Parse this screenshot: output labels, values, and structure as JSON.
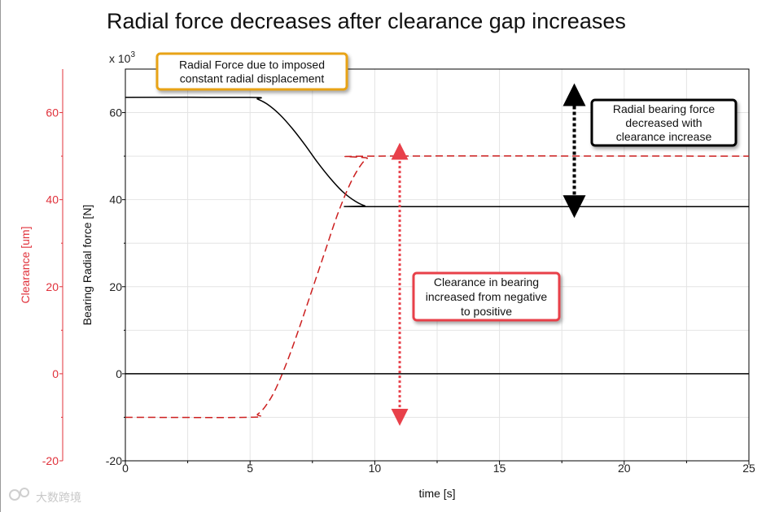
{
  "chart_data": {
    "type": "line",
    "title": "Radial force decreases after clearance gap increases",
    "xlabel": "time [s]",
    "ylabel": "Bearing Radial force [N]",
    "y2label": "Clearance [um]",
    "y_multiplier_base": "x 10",
    "y_multiplier_exp": "3",
    "xlim": [
      0,
      25
    ],
    "ylim": [
      -20,
      70
    ],
    "y2lim": [
      -20,
      70
    ],
    "x_ticks": [
      0,
      5,
      10,
      15,
      20,
      25
    ],
    "y_ticks": [
      -20,
      0,
      20,
      40,
      60
    ],
    "y2_ticks": [
      -20,
      0,
      20,
      40,
      60
    ],
    "grid": true,
    "series": [
      {
        "name": "Bearing Radial force",
        "axis": "left",
        "color": "#000000",
        "style": "solid",
        "x": [
          0,
          5.0,
          5.3,
          5.7,
          6.2,
          6.7,
          7.2,
          7.7,
          8.2,
          8.7,
          9.2,
          9.6,
          10.0,
          25
        ],
        "y": [
          63.5,
          63.5,
          63.1,
          61.9,
          59.5,
          56.3,
          52.6,
          48.6,
          45.0,
          41.9,
          39.7,
          38.6,
          38.4,
          38.4
        ]
      },
      {
        "name": "Clearance",
        "axis": "right",
        "color": "#cc1f1f",
        "style": "dashed",
        "x": [
          0,
          5.0,
          5.3,
          5.6,
          6.0,
          6.5,
          7.0,
          7.5,
          8.0,
          8.5,
          9.0,
          9.4,
          9.7,
          10.0,
          25
        ],
        "y": [
          -10,
          -10,
          -9.3,
          -7.6,
          -3.8,
          3.0,
          11.0,
          19.5,
          28.0,
          36.5,
          43.5,
          47.6,
          49.5,
          50.0,
          50.0
        ]
      },
      {
        "name": "Zero reference",
        "axis": "left",
        "color": "#000000",
        "style": "solid",
        "x": [
          0,
          25
        ],
        "y": [
          0,
          0
        ]
      }
    ],
    "annotations": [
      {
        "id": "imposed",
        "lines": [
          "Radial Force due to imposed",
          "constant radial displacement"
        ],
        "border_color": "#e8a317"
      },
      {
        "id": "bearing",
        "lines": [
          "Radial bearing force",
          "decreased with",
          "clearance increase"
        ],
        "border_color": "#000000",
        "arrow": {
          "x": 18,
          "y_from": 63,
          "y_to": 38.4,
          "color": "#000000"
        }
      },
      {
        "id": "clearance",
        "lines": [
          "Clearance in bearing",
          "increased from negative",
          "to positive"
        ],
        "border_color": "#e8404a",
        "arrow": {
          "x": 11,
          "y_from": 50,
          "y_to": -10,
          "color": "#e8404a"
        }
      }
    ]
  },
  "watermark": "大数跨境"
}
